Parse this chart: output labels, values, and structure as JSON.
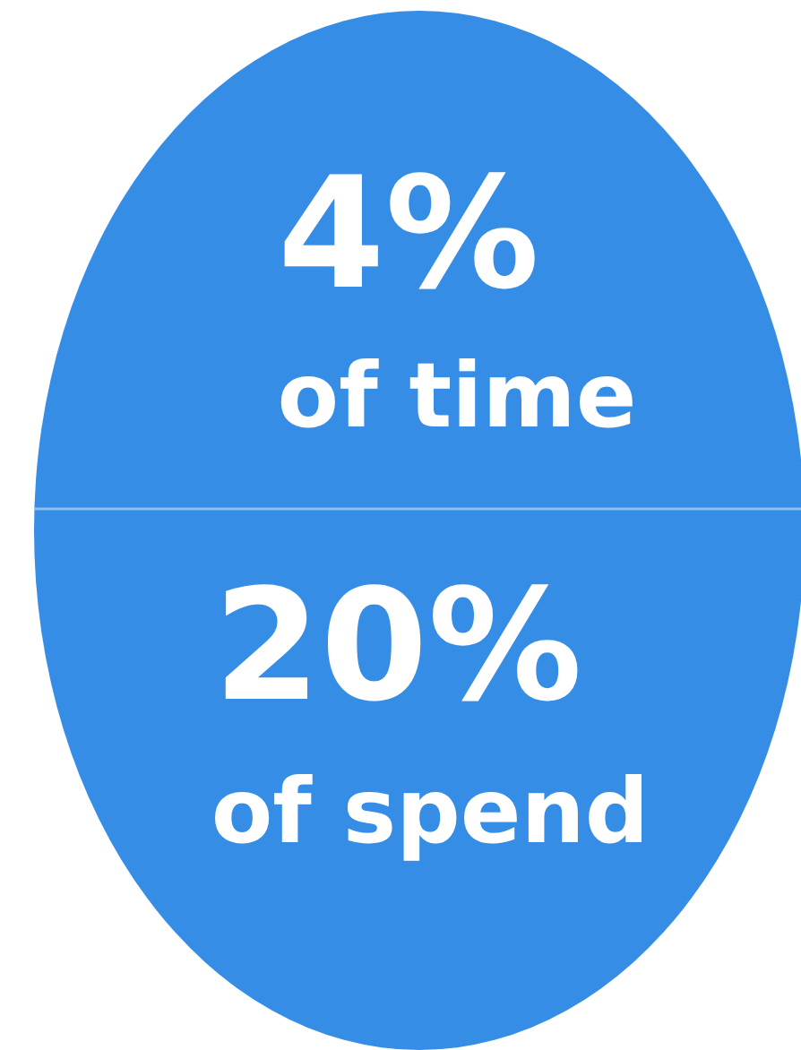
{
  "chart_data": {
    "type": "other",
    "categories": [
      "of time",
      "of spend"
    ],
    "values": [
      4,
      20
    ],
    "value_labels": [
      "4%",
      "20%"
    ],
    "color": "#358de6"
  }
}
